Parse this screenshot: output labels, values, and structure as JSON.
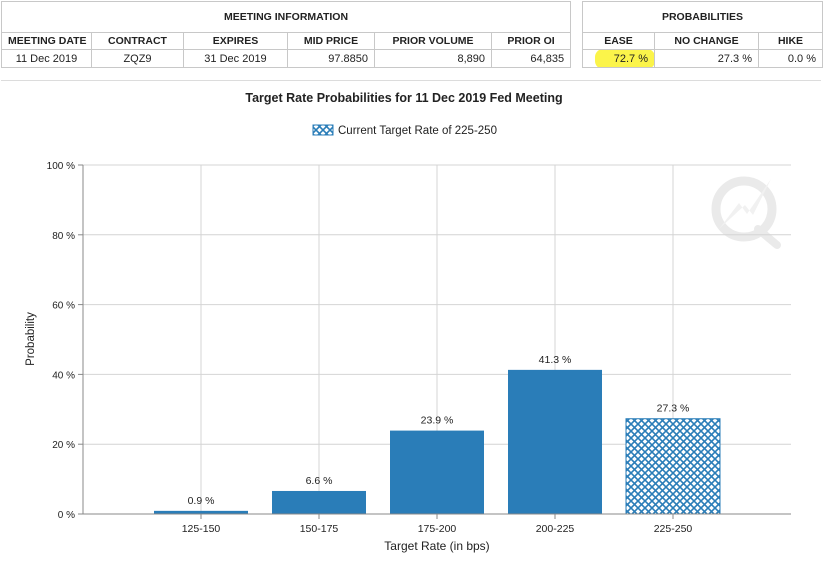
{
  "meeting_info": {
    "section_title": "MEETING INFORMATION",
    "headers": [
      "MEETING DATE",
      "CONTRACT",
      "EXPIRES",
      "MID PRICE",
      "PRIOR VOLUME",
      "PRIOR OI"
    ],
    "values": [
      "11 Dec 2019",
      "ZQZ9",
      "31 Dec 2019",
      "97.8850",
      "8,890",
      "64,835"
    ]
  },
  "probabilities": {
    "section_title": "PROBABILITIES",
    "headers": [
      "EASE",
      "NO CHANGE",
      "HIKE"
    ],
    "values": [
      "72.7 %",
      "27.3 %",
      "0.0 %"
    ],
    "highlight_color": "#fbf44a"
  },
  "chart_data": {
    "type": "bar",
    "title": "Target Rate Probabilities for 11 Dec 2019 Fed Meeting",
    "legend_label": "Current Target Rate of 225-250",
    "xlabel": "Target Rate (in bps)",
    "ylabel": "Probability",
    "categories": [
      "125-150",
      "150-175",
      "175-200",
      "200-225",
      "225-250"
    ],
    "values": [
      0.9,
      6.6,
      23.9,
      41.3,
      27.3
    ],
    "data_labels": [
      "0.9 %",
      "6.6 %",
      "23.9 %",
      "41.3 %",
      "27.3 %"
    ],
    "current_category": "225-250",
    "ylim": [
      0,
      100
    ],
    "yticks": [
      0,
      20,
      40,
      60,
      80,
      100
    ],
    "ytick_labels": [
      "0 %",
      "20 %",
      "40 %",
      "60 %",
      "80 %",
      "100 %"
    ],
    "grid": true,
    "legend_position": "top-center",
    "bar_color": "#2a7db8",
    "hatch_color": "#2a7db8"
  }
}
